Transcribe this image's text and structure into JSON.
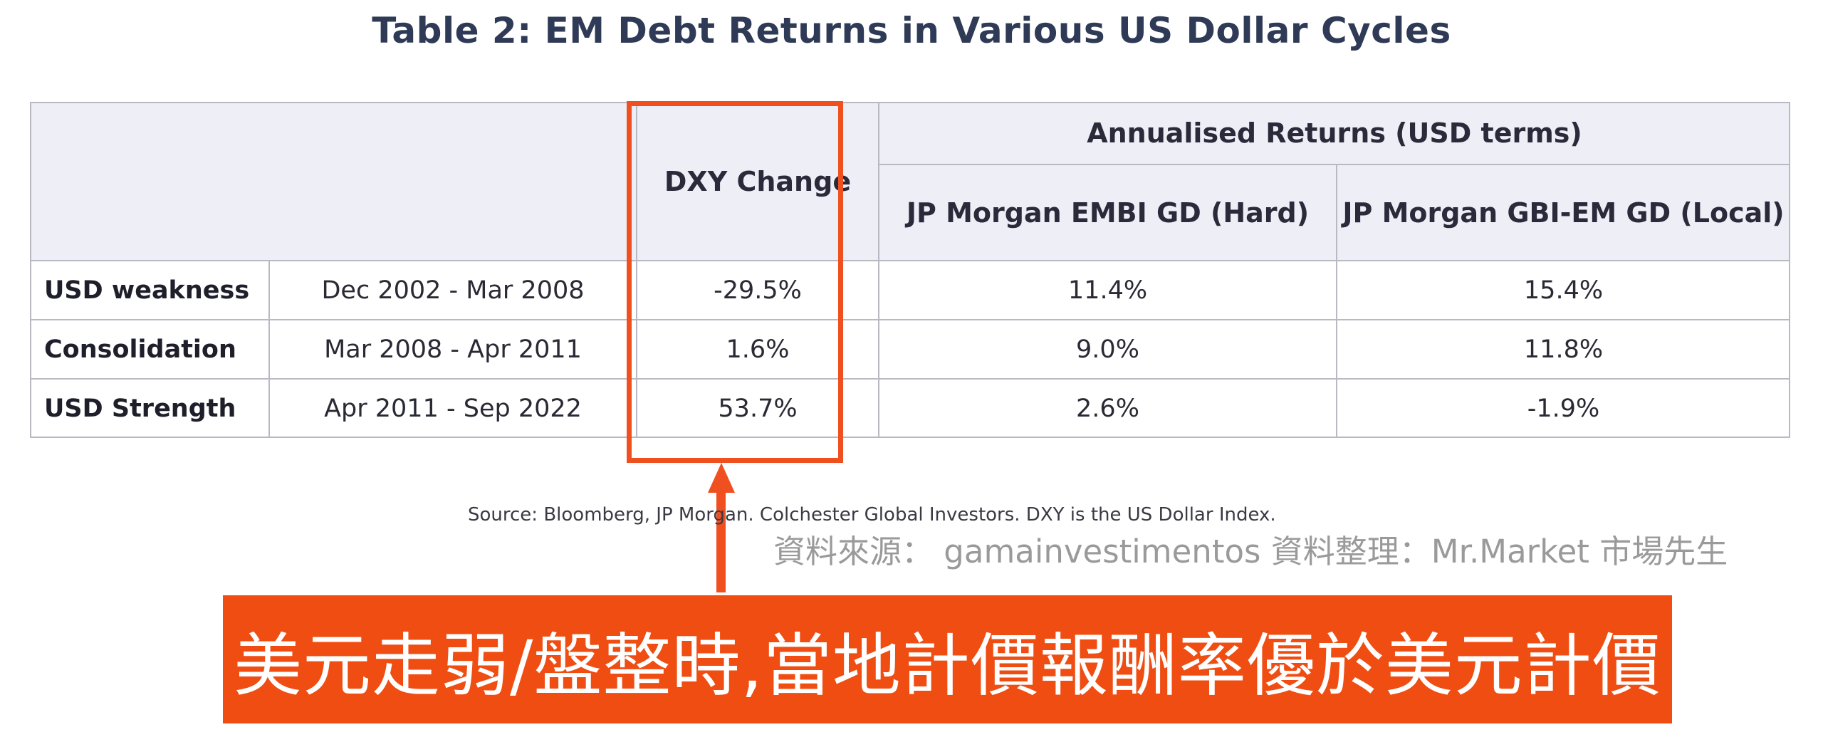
{
  "title": "Table 2: EM Debt Returns in Various US Dollar Cycles",
  "table": {
    "header": {
      "dxy": "DXY Change",
      "group": "Annualised Returns (USD terms)",
      "col_hard": "JP Morgan EMBI GD (Hard)",
      "col_local": "JP Morgan GBI-EM GD (Local)"
    },
    "rows": [
      {
        "label": "USD weakness",
        "period": "Dec 2002 - Mar 2008",
        "dxy": "-29.5%",
        "hard": "11.4%",
        "local": "15.4%"
      },
      {
        "label": "Consolidation",
        "period": "Mar 2008 - Apr 2011",
        "dxy": "1.6%",
        "hard": "9.0%",
        "local": "11.8%"
      },
      {
        "label": "USD Strength",
        "period": "Apr 2011 - Sep 2022",
        "dxy": "53.7%",
        "hard": "2.6%",
        "local": "-1.9%"
      }
    ]
  },
  "source": "Source: Bloomberg, JP Morgan.  Colchester Global Investors. DXY is the US Dollar Index.",
  "credit": "資料來源： gamainvestimentos   資料整理：Mr.Market 市場先生",
  "banner": "美元走弱/盤整時,當地計價報酬率優於美元計價",
  "colors": {
    "accent": "#f0501f",
    "header_bg": "#eeeef7",
    "title": "#2f3a56"
  }
}
